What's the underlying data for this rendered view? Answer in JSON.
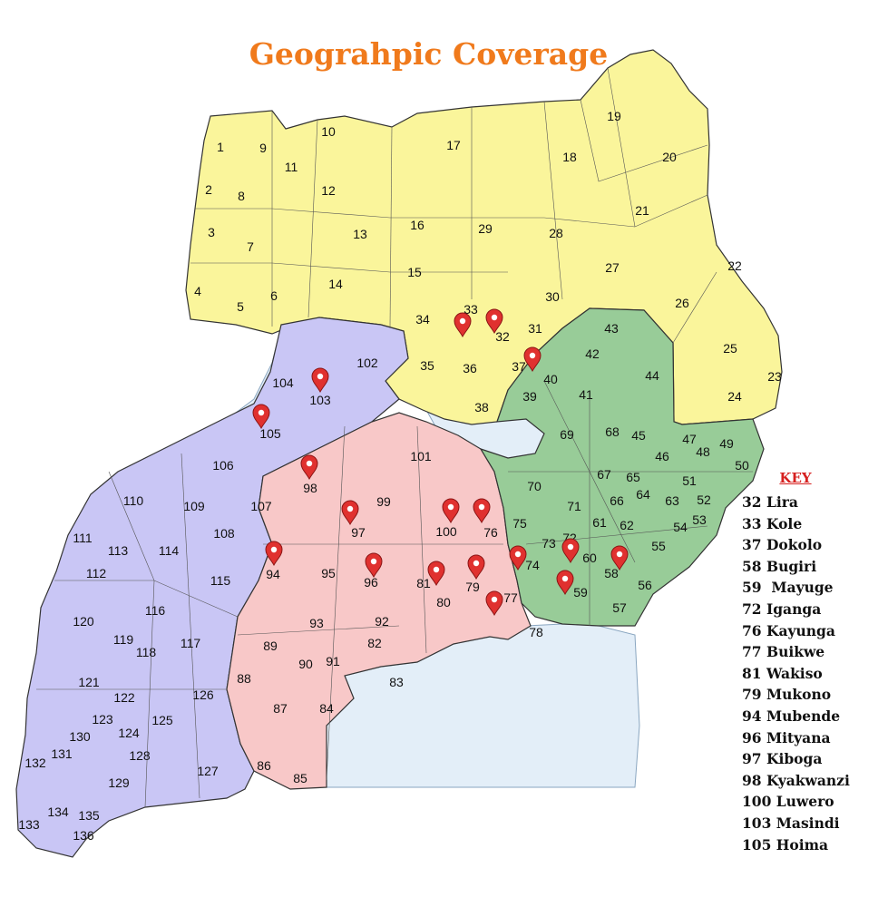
{
  "title": "Geograhpic Coverage",
  "colors": {
    "title": "#f07a1c",
    "northern_region": "#faf59b",
    "western_region": "#c9c6f5",
    "central_region": "#f8c8c8",
    "eastern_region": "#98cc98",
    "water": "#e3eef8",
    "marker": "#e0312f",
    "key_heading": "#d6201f"
  },
  "marker_icon": "map-pin-icon",
  "regions": [
    {
      "name": "northern",
      "color": "#faf59b"
    },
    {
      "name": "western",
      "color": "#c9c6f5"
    },
    {
      "name": "central",
      "color": "#f8c8c8"
    },
    {
      "name": "eastern",
      "color": "#98cc98"
    }
  ],
  "district_numbers": [
    "1",
    "2",
    "3",
    "4",
    "5",
    "6",
    "7",
    "8",
    "9",
    "10",
    "11",
    "12",
    "13",
    "14",
    "15",
    "16",
    "17",
    "18",
    "19",
    "20",
    "21",
    "22",
    "23",
    "24",
    "25",
    "26",
    "27",
    "28",
    "29",
    "30",
    "31",
    "32",
    "33",
    "34",
    "35",
    "36",
    "37",
    "38",
    "39",
    "40",
    "41",
    "42",
    "43",
    "44",
    "45",
    "46",
    "47",
    "48",
    "49",
    "50",
    "51",
    "52",
    "53",
    "54",
    "55",
    "56",
    "57",
    "58",
    "59",
    "60",
    "61",
    "62",
    "63",
    "64",
    "65",
    "66",
    "67",
    "68",
    "69",
    "70",
    "71",
    "72",
    "73",
    "74",
    "75",
    "76",
    "77",
    "78",
    "79",
    "80",
    "81",
    "82",
    "83",
    "84",
    "85",
    "86",
    "87",
    "88",
    "89",
    "90",
    "91",
    "92",
    "93",
    "94",
    "95",
    "96",
    "97",
    "98",
    "99",
    "100",
    "101",
    "102",
    "103",
    "104",
    "105",
    "106",
    "107",
    "108",
    "109",
    "110",
    "111",
    "112",
    "113",
    "114",
    "115",
    "116",
    "117",
    "118",
    "119",
    "120",
    "121",
    "122",
    "123",
    "124",
    "125",
    "126",
    "127",
    "128",
    "129",
    "130",
    "131",
    "132",
    "133",
    "134",
    "135",
    "136"
  ],
  "key": {
    "heading": "KEY",
    "items": [
      "32 Lira",
      "33 Kole",
      "37 Dokolo",
      "58 Bugiri",
      "59  Mayuge",
      "72 Iganga",
      "76 Kayunga",
      "77 Buikwe",
      "81 Wakiso",
      "79 Mukono",
      "94 Mubende",
      "96 Mityana",
      "97 Kiboga",
      "98 Kyakwanzi",
      "100 Luwero",
      "103 Masindi",
      "105 Hoima"
    ]
  }
}
